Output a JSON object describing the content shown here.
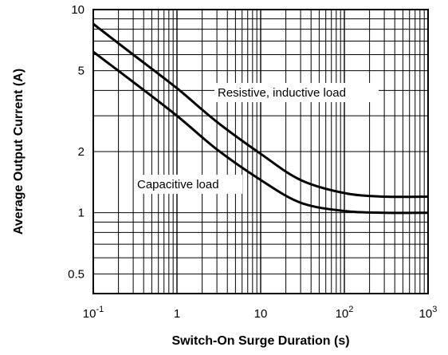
{
  "chart_data": {
    "type": "line",
    "xlabel": "Switch-On Surge Duration (s)",
    "ylabel": "Average Output Current (A)",
    "x_scale": "log",
    "y_scale": "log",
    "xlim": [
      0.1,
      1000
    ],
    "ylim": [
      0.4,
      10
    ],
    "grid": true,
    "x_ticks": [
      {
        "value": 0.1,
        "base": "10",
        "exp": "-1"
      },
      {
        "value": 1,
        "base": "1",
        "exp": ""
      },
      {
        "value": 10,
        "base": "10",
        "exp": ""
      },
      {
        "value": 100,
        "base": "10",
        "exp": "2"
      },
      {
        "value": 1000,
        "base": "10",
        "exp": "3"
      }
    ],
    "y_ticks": [
      {
        "value": 0.5,
        "label": "0.5"
      },
      {
        "value": 1,
        "label": "1"
      },
      {
        "value": 2,
        "label": "2"
      },
      {
        "value": 5,
        "label": "5"
      },
      {
        "value": 10,
        "label": "10"
      }
    ],
    "series": [
      {
        "name": "Resistive, inductive load",
        "points": [
          [
            0.1,
            8.5
          ],
          [
            0.3,
            6.0
          ],
          [
            1,
            4.1
          ],
          [
            3,
            2.8
          ],
          [
            10,
            1.95
          ],
          [
            30,
            1.45
          ],
          [
            100,
            1.25
          ],
          [
            300,
            1.2
          ],
          [
            1000,
            1.2
          ]
        ]
      },
      {
        "name": "Capacitive load",
        "points": [
          [
            0.1,
            6.2
          ],
          [
            0.3,
            4.4
          ],
          [
            1,
            3.0
          ],
          [
            3,
            2.05
          ],
          [
            10,
            1.45
          ],
          [
            30,
            1.12
          ],
          [
            100,
            1.02
          ],
          [
            300,
            1.0
          ],
          [
            1000,
            1.0
          ]
        ]
      }
    ]
  }
}
